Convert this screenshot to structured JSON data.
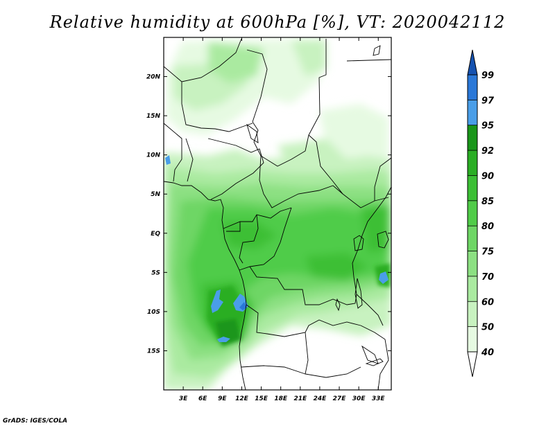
{
  "title": "Relative humidity at 600hPa [%], VT: 2020042112",
  "credit": "GrADS: IGES/COLA",
  "map": {
    "lon_range": [
      0,
      35
    ],
    "lat_range": [
      -20,
      25
    ],
    "lat_ticks": [
      {
        "value": 20,
        "label": "20N"
      },
      {
        "value": 15,
        "label": "15N"
      },
      {
        "value": 10,
        "label": "10N"
      },
      {
        "value": 5,
        "label": "5N"
      },
      {
        "value": 0,
        "label": "EQ"
      },
      {
        "value": -5,
        "label": "5S"
      },
      {
        "value": -10,
        "label": "10S"
      },
      {
        "value": -15,
        "label": "15S"
      }
    ],
    "lon_ticks": [
      {
        "value": 3,
        "label": "3E"
      },
      {
        "value": 6,
        "label": "6E"
      },
      {
        "value": 9,
        "label": "9E"
      },
      {
        "value": 12,
        "label": "12E"
      },
      {
        "value": 15,
        "label": "15E"
      },
      {
        "value": 18,
        "label": "18E"
      },
      {
        "value": 21,
        "label": "21E"
      },
      {
        "value": 24,
        "label": "24E"
      },
      {
        "value": 27,
        "label": "27E"
      },
      {
        "value": 30,
        "label": "30E"
      },
      {
        "value": 33,
        "label": "33E"
      }
    ]
  },
  "colorbar": {
    "levels": [
      "40",
      "50",
      "60",
      "70",
      "75",
      "80",
      "85",
      "90",
      "92",
      "95",
      "97",
      "99"
    ],
    "colors": [
      "#e6fae2",
      "#c8f2c0",
      "#aaeaa0",
      "#8ce082",
      "#6ed665",
      "#50cc48",
      "#3cbf35",
      "#2aae24",
      "#1a961a",
      "#4a9ee8",
      "#2a78d8",
      "#1a5ec4"
    ],
    "low_end_color": "#ffffff",
    "high_end_color": "#1552b0"
  },
  "chart_data": {
    "type": "heatmap",
    "title": "Relative humidity at 600hPa [%], VT: 2020042112",
    "x_axis": "longitude",
    "y_axis": "latitude",
    "xlim": [
      0,
      35
    ],
    "ylim": [
      -20,
      25
    ],
    "units": "%",
    "regions": [
      {
        "lon": 12,
        "lat": 0,
        "level": 85
      },
      {
        "lon": 22,
        "lat": -4,
        "level": 85
      },
      {
        "lon": 9,
        "lat": -10,
        "level": 92
      },
      {
        "lon": 12,
        "lat": -10,
        "level": 95
      },
      {
        "lon": 9,
        "lat": -14,
        "level": 95
      },
      {
        "lon": 33,
        "lat": -6,
        "level": 95
      },
      {
        "lon": 1,
        "lat": 10,
        "level": 95
      },
      {
        "lon": 20,
        "lat": 15,
        "level": 40
      },
      {
        "lon": 25,
        "lat": -13,
        "level": 60
      }
    ]
  }
}
